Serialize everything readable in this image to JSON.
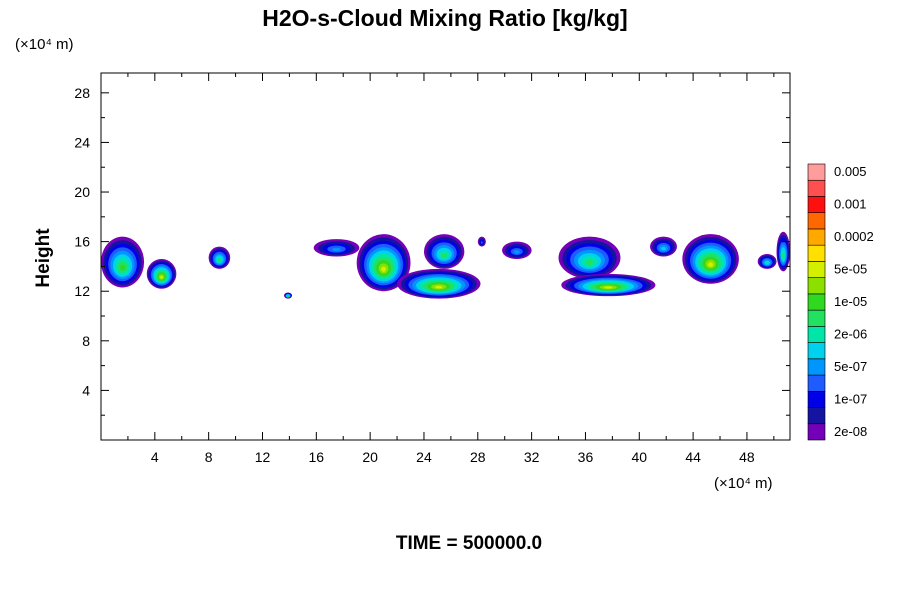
{
  "chart_data": {
    "type": "heatmap",
    "title": "H2O-s-Cloud Mixing Ratio [kg/kg]",
    "ylabel": "Height",
    "xlabel": "",
    "x_unit_label": "(×10⁴ m)",
    "y_unit_label": "(×10⁴ m)",
    "footer": "TIME = 500000.0",
    "xlim": [
      0,
      51.2
    ],
    "ylim": [
      0,
      29.6
    ],
    "x_ticks": [
      4,
      8,
      12,
      16,
      20,
      24,
      28,
      32,
      36,
      40,
      44,
      48
    ],
    "y_ticks": [
      4,
      8,
      12,
      16,
      20,
      24,
      28
    ],
    "colorbar": {
      "levels": [
        {
          "color": "#7400b8",
          "label": "2e-08"
        },
        {
          "color": "#1414a0",
          "label": ""
        },
        {
          "color": "#0000e8",
          "label": "1e-07"
        },
        {
          "color": "#1e5cff",
          "label": ""
        },
        {
          "color": "#0096ff",
          "label": "5e-07"
        },
        {
          "color": "#00d2ee",
          "label": ""
        },
        {
          "color": "#00e6a8",
          "label": "2e-06"
        },
        {
          "color": "#22e060",
          "label": ""
        },
        {
          "color": "#30d820",
          "label": "1e-05"
        },
        {
          "color": "#8ce000",
          "label": ""
        },
        {
          "color": "#d2f000",
          "label": "5e-05"
        },
        {
          "color": "#ffe000",
          "label": ""
        },
        {
          "color": "#ffa800",
          "label": "0.0002"
        },
        {
          "color": "#ff6800",
          "label": ""
        },
        {
          "color": "#ff1010",
          "label": "0.001"
        },
        {
          "color": "#ff5050",
          "label": ""
        },
        {
          "color": "#ff9c9c",
          "label": "0.005"
        }
      ]
    },
    "cloud_regions": [
      {
        "x": [
          0,
          3.2
        ],
        "y": [
          12.3,
          16.4
        ],
        "max_level": 8
      },
      {
        "x": [
          3.4,
          5.6
        ],
        "y": [
          12.2,
          14.6
        ],
        "max_level": 10
      },
      {
        "x": [
          8.0,
          9.6
        ],
        "y": [
          13.8,
          15.6
        ],
        "max_level": 7
      },
      {
        "x": [
          13.6,
          14.2
        ],
        "y": [
          11.4,
          11.9
        ],
        "max_level": 8
      },
      {
        "x": [
          15.8,
          19.2
        ],
        "y": [
          14.8,
          16.2
        ],
        "max_level": 4
      },
      {
        "x": [
          19.0,
          23.0
        ],
        "y": [
          12.0,
          16.6
        ],
        "max_level": 10
      },
      {
        "x": [
          22.0,
          28.2
        ],
        "y": [
          11.4,
          13.8
        ],
        "max_level": 10
      },
      {
        "x": [
          24.0,
          27.0
        ],
        "y": [
          13.8,
          16.6
        ],
        "max_level": 7
      },
      {
        "x": [
          28.0,
          28.6
        ],
        "y": [
          15.6,
          16.4
        ],
        "max_level": 3
      },
      {
        "x": [
          29.8,
          32.0
        ],
        "y": [
          14.6,
          16.0
        ],
        "max_level": 4
      },
      {
        "x": [
          34.0,
          38.6
        ],
        "y": [
          13.0,
          16.4
        ],
        "max_level": 7
      },
      {
        "x": [
          34.2,
          41.2
        ],
        "y": [
          11.6,
          13.4
        ],
        "max_level": 10
      },
      {
        "x": [
          40.8,
          42.8
        ],
        "y": [
          14.8,
          16.4
        ],
        "max_level": 5
      },
      {
        "x": [
          43.2,
          47.4
        ],
        "y": [
          12.6,
          16.6
        ],
        "max_level": 10
      },
      {
        "x": [
          48.8,
          50.2
        ],
        "y": [
          13.8,
          15.0
        ],
        "max_level": 6
      },
      {
        "x": [
          50.2,
          51.2
        ],
        "y": [
          13.6,
          16.8
        ],
        "max_level": 7
      }
    ]
  }
}
